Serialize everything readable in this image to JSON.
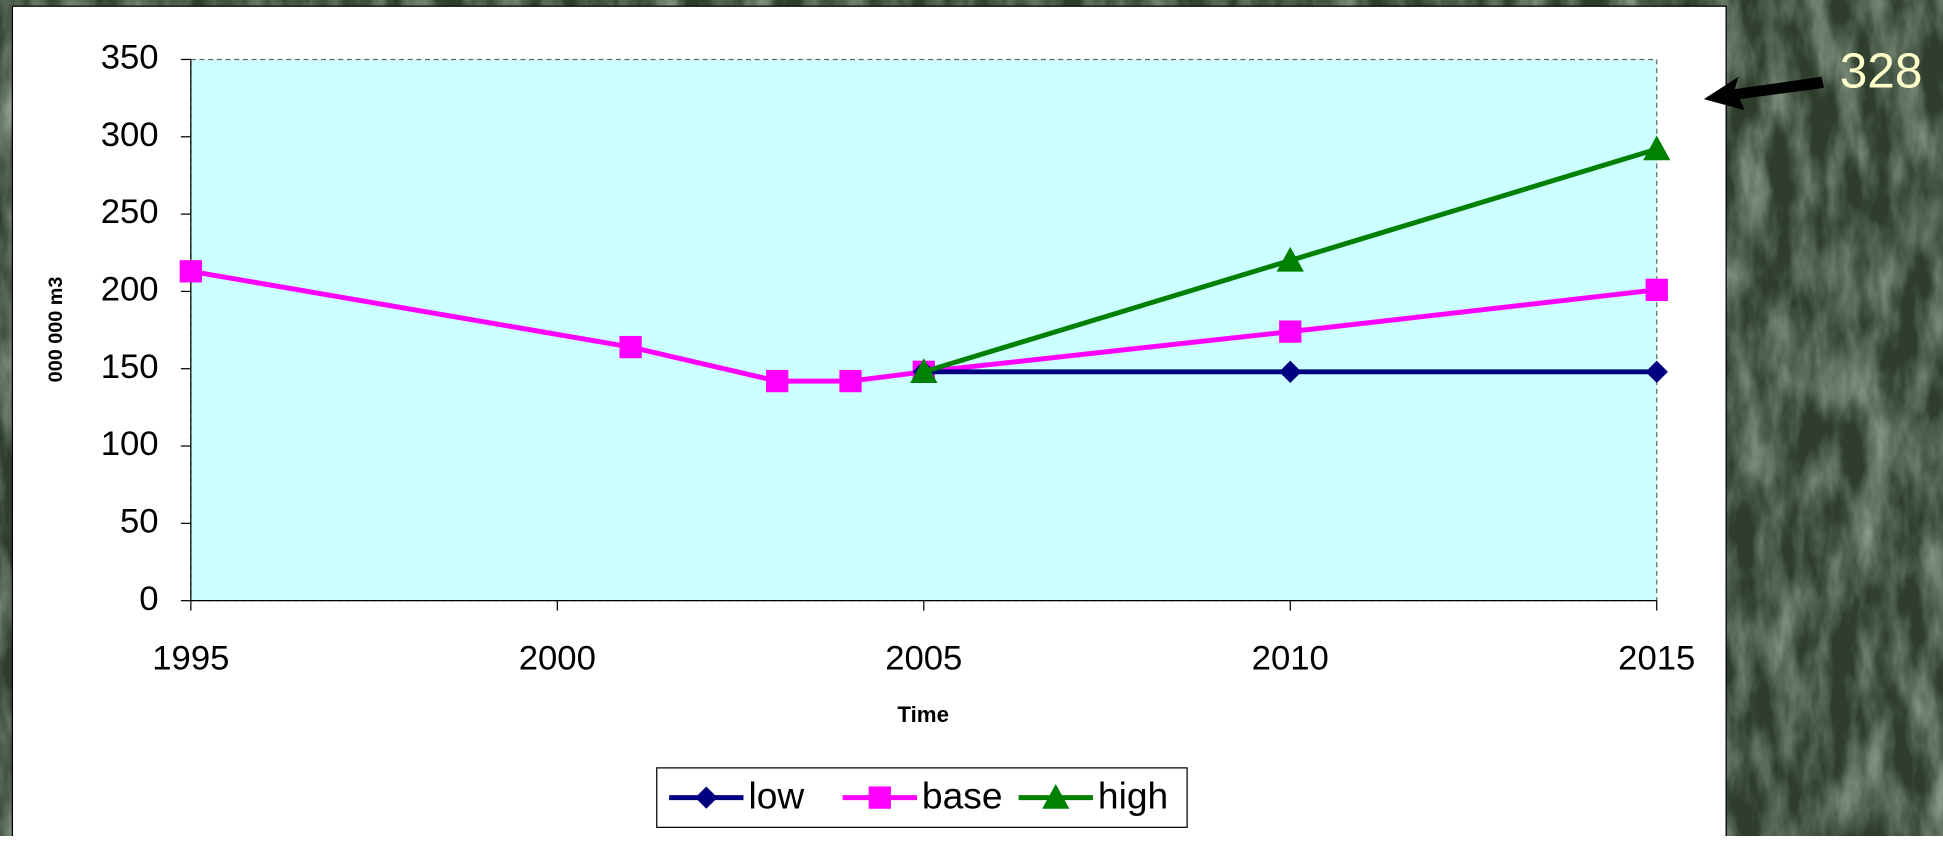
{
  "chart_data": {
    "type": "line",
    "x": [
      1995,
      2001,
      2003,
      2004,
      2005,
      2010,
      2015
    ],
    "series": [
      {
        "name": "low",
        "color": "#000080",
        "marker": "diamond",
        "values": [
          null,
          null,
          null,
          null,
          148,
          148,
          148
        ]
      },
      {
        "name": "base",
        "color": "#ff00ff",
        "marker": "square",
        "values": [
          213,
          164,
          142,
          142,
          148,
          174,
          201
        ]
      },
      {
        "name": "high",
        "color": "#008000",
        "marker": "triangle",
        "values": [
          null,
          null,
          null,
          null,
          148,
          220,
          292
        ]
      }
    ],
    "xlim": [
      1995,
      2015
    ],
    "xticks": [
      1995,
      2000,
      2005,
      2010,
      2015
    ],
    "ylim": [
      0,
      350
    ],
    "yticks": [
      0,
      50,
      100,
      150,
      200,
      250,
      300,
      350
    ],
    "xlabel": "Time",
    "ylabel": "000 000 m3",
    "grid": false,
    "legend": "bottom",
    "annotation": "328"
  }
}
